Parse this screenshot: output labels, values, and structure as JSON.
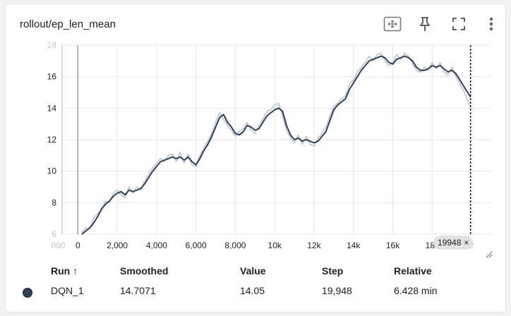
{
  "card": {
    "title": "rollout/ep_len_mean",
    "tools": [
      "fit-domain-icon",
      "pin-icon",
      "fullscreen-icon",
      "more-vert-icon"
    ]
  },
  "chart_data": {
    "type": "line",
    "title": "rollout/ep_len_mean",
    "xlabel": "",
    "ylabel": "",
    "xlim": [
      -800,
      21000
    ],
    "ylim": [
      6,
      18
    ],
    "x_ticks": [
      "000",
      "0",
      "2,000",
      "4,000",
      "6,000",
      "8,000",
      "10k",
      "12k",
      "14k",
      "16k",
      "18k",
      "2"
    ],
    "y_ticks": [
      "18",
      "16",
      "14",
      "12",
      "10",
      "8",
      "6"
    ],
    "cursor_step": 19948,
    "series": [
      {
        "name": "DQN_1",
        "role": "smoothed",
        "color": "#2f3f55",
        "x": [
          200,
          400,
          600,
          800,
          1000,
          1200,
          1400,
          1600,
          1800,
          2000,
          2200,
          2400,
          2600,
          2800,
          3000,
          3200,
          3400,
          3600,
          3800,
          4000,
          4200,
          4400,
          4600,
          4800,
          5000,
          5200,
          5400,
          5600,
          5800,
          6000,
          6200,
          6400,
          6600,
          6800,
          7000,
          7200,
          7400,
          7600,
          7800,
          8000,
          8200,
          8400,
          8600,
          8800,
          9000,
          9200,
          9400,
          9600,
          9800,
          10000,
          10200,
          10400,
          10600,
          10800,
          11000,
          11200,
          11400,
          11600,
          11800,
          12000,
          12200,
          12400,
          12600,
          12800,
          13000,
          13200,
          13400,
          13600,
          13800,
          14000,
          14200,
          14400,
          14600,
          14800,
          15000,
          15200,
          15400,
          15600,
          15800,
          16000,
          16200,
          16400,
          16600,
          16800,
          17000,
          17200,
          17400,
          17600,
          17800,
          18000,
          18200,
          18400,
          18600,
          18800,
          19000,
          19200,
          19400,
          19600,
          19800,
          19948
        ],
        "y": [
          6.0,
          6.2,
          6.4,
          6.7,
          7.1,
          7.6,
          7.9,
          8.1,
          8.4,
          8.6,
          8.7,
          8.5,
          8.8,
          8.7,
          8.8,
          8.9,
          9.2,
          9.6,
          10.0,
          10.3,
          10.6,
          10.7,
          10.8,
          10.9,
          10.8,
          10.9,
          10.7,
          10.9,
          10.6,
          10.4,
          10.8,
          11.3,
          11.7,
          12.2,
          12.8,
          13.4,
          13.6,
          13.1,
          12.8,
          12.4,
          12.3,
          12.5,
          12.9,
          12.8,
          12.6,
          12.7,
          13.1,
          13.5,
          13.7,
          13.9,
          14.0,
          13.8,
          12.9,
          12.3,
          12.0,
          12.1,
          11.9,
          12.0,
          11.9,
          11.8,
          11.9,
          12.2,
          12.5,
          13.2,
          13.9,
          14.2,
          14.4,
          14.6,
          15.2,
          15.6,
          16.0,
          16.4,
          16.7,
          17.0,
          17.1,
          17.2,
          17.3,
          17.2,
          16.9,
          16.8,
          17.1,
          17.2,
          17.3,
          17.2,
          17.0,
          16.6,
          16.4,
          16.4,
          16.5,
          16.7,
          16.6,
          16.7,
          16.5,
          16.3,
          16.4,
          16.2,
          15.8,
          15.4,
          15.0,
          14.7071
        ]
      },
      {
        "name": "DQN_1",
        "role": "raw",
        "color": "#b7c6d6",
        "x": [
          200,
          400,
          600,
          800,
          1000,
          1200,
          1400,
          1600,
          1800,
          2000,
          2200,
          2400,
          2600,
          2800,
          3000,
          3200,
          3400,
          3600,
          3800,
          4000,
          4200,
          4400,
          4600,
          4800,
          5000,
          5200,
          5400,
          5600,
          5800,
          6000,
          6200,
          6400,
          6600,
          6800,
          7000,
          7200,
          7400,
          7600,
          7800,
          8000,
          8200,
          8400,
          8600,
          8800,
          9000,
          9200,
          9400,
          9600,
          9800,
          10000,
          10200,
          10400,
          10600,
          10800,
          11000,
          11200,
          11400,
          11600,
          11800,
          12000,
          12200,
          12400,
          12600,
          12800,
          13000,
          13200,
          13400,
          13600,
          13800,
          14000,
          14200,
          14400,
          14600,
          14800,
          15000,
          15200,
          15400,
          15600,
          15800,
          16000,
          16200,
          16400,
          16600,
          16800,
          17000,
          17200,
          17400,
          17600,
          17800,
          18000,
          18200,
          18400,
          18600,
          18800,
          19000,
          19200,
          19400,
          19600,
          19800,
          19948
        ],
        "y": [
          6.1,
          6.4,
          6.3,
          7.0,
          7.3,
          7.5,
          8.1,
          8.0,
          8.6,
          8.8,
          8.5,
          8.3,
          9.0,
          8.6,
          9.0,
          8.8,
          9.4,
          9.8,
          10.2,
          10.5,
          10.8,
          10.6,
          11.0,
          11.1,
          10.6,
          11.2,
          10.5,
          11.1,
          10.4,
          10.3,
          11.0,
          11.5,
          11.9,
          12.4,
          13.1,
          13.7,
          13.3,
          12.9,
          12.6,
          12.2,
          12.5,
          12.7,
          13.1,
          12.6,
          12.4,
          12.9,
          13.3,
          13.8,
          13.9,
          14.2,
          14.3,
          13.5,
          12.6,
          12.1,
          11.8,
          12.3,
          11.7,
          12.2,
          11.7,
          11.6,
          12.1,
          12.4,
          12.8,
          13.5,
          14.1,
          14.3,
          14.6,
          14.8,
          15.5,
          15.8,
          16.3,
          16.6,
          16.9,
          17.3,
          17.0,
          17.4,
          17.5,
          17.0,
          16.7,
          16.9,
          17.4,
          17.1,
          17.5,
          17.3,
          16.8,
          16.4,
          16.3,
          16.6,
          16.4,
          16.9,
          16.5,
          16.9,
          16.3,
          16.1,
          16.6,
          16.0,
          15.6,
          15.1,
          14.5,
          14.05
        ]
      }
    ]
  },
  "step_chip": {
    "label": "19948",
    "close": "×"
  },
  "table": {
    "headers": {
      "run": "Run ↑",
      "smoothed": "Smoothed",
      "value": "Value",
      "step": "Step",
      "relative": "Relative"
    },
    "rows": [
      {
        "run": "DQN_1",
        "smoothed": "14.7071",
        "value": "14.05",
        "step": "19,948",
        "relative": "6.428 min",
        "color": "#2f3f55"
      }
    ]
  }
}
